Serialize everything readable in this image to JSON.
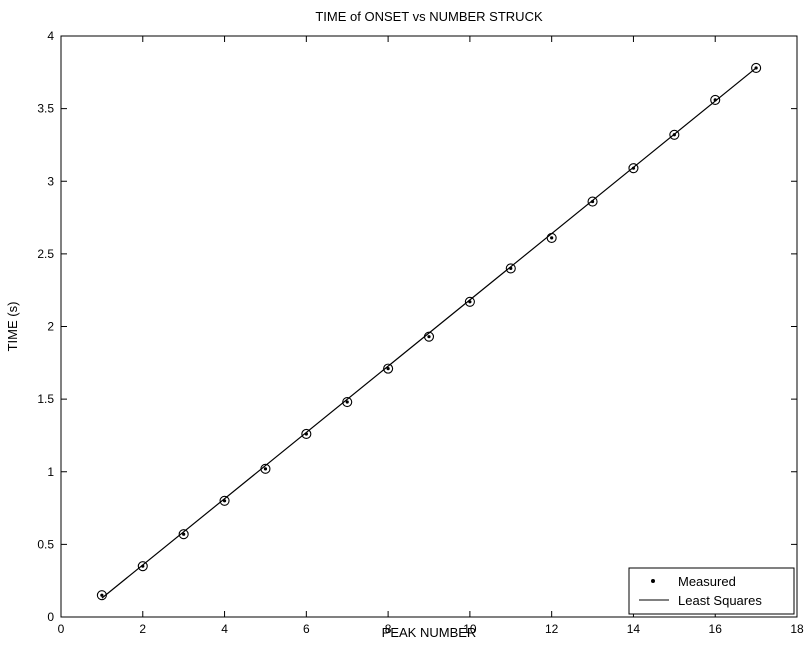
{
  "chart_data": {
    "type": "scatter",
    "title": "TIME of ONSET vs NUMBER STRUCK",
    "xlabel": "PEAK NUMBER",
    "ylabel": "TIME (s)",
    "xlim": [
      0,
      18
    ],
    "ylim": [
      0,
      4
    ],
    "xticks": [
      0,
      2,
      4,
      6,
      8,
      10,
      12,
      14,
      16,
      18
    ],
    "yticks": [
      0,
      0.5,
      1,
      1.5,
      2,
      2.5,
      3,
      3.5,
      4
    ],
    "grid": false,
    "legend_position": "bottom-right",
    "series": [
      {
        "name": "Measured",
        "kind": "points",
        "marker": "circled-dot",
        "x": [
          1,
          2,
          3,
          4,
          5,
          6,
          7,
          8,
          9,
          10,
          11,
          12,
          13,
          14,
          15,
          16,
          17
        ],
        "y": [
          0.15,
          0.35,
          0.57,
          0.8,
          1.02,
          1.26,
          1.48,
          1.71,
          1.93,
          2.17,
          2.4,
          2.61,
          2.86,
          3.09,
          3.32,
          3.56,
          3.78
        ]
      },
      {
        "name": "Least Squares",
        "kind": "line",
        "x": [
          1,
          17
        ],
        "y": [
          0.13,
          3.78
        ]
      }
    ]
  },
  "colors": {
    "axis": "#000000",
    "series": "#000000",
    "background": "#ffffff"
  }
}
